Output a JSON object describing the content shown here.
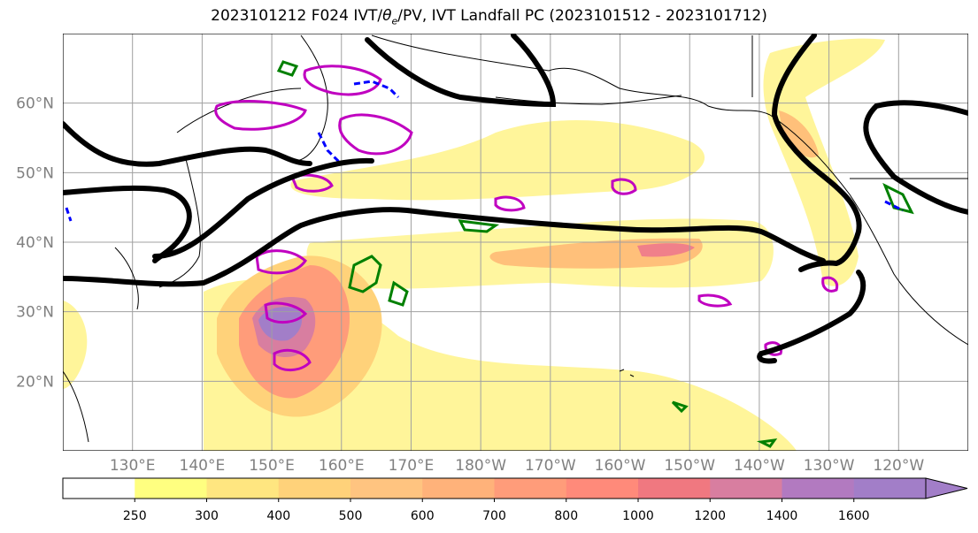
{
  "title": {
    "main": "2023101212 F024 IVT/",
    "symbol": "θ",
    "sub": "e",
    "rest": "/PV, IVT Landfall PC (2023101512 - 2023101712)"
  },
  "map": {
    "lat_labels": [
      "60°N",
      "50°N",
      "40°N",
      "30°N",
      "20°N"
    ],
    "lat_values": [
      60,
      50,
      40,
      30,
      20
    ],
    "lon_labels": [
      "130°E",
      "140°E",
      "150°E",
      "160°E",
      "170°E",
      "180°W",
      "170°W",
      "160°W",
      "150°W",
      "140°W",
      "130°W",
      "120°W"
    ],
    "lon_values": [
      130,
      140,
      150,
      160,
      170,
      180,
      190,
      200,
      210,
      220,
      230,
      240
    ],
    "lon_range": [
      120,
      250
    ],
    "lat_range": [
      10,
      70
    ],
    "grid": true
  },
  "colorbar": {
    "ticks": [
      "250",
      "300",
      "400",
      "500",
      "600",
      "700",
      "800",
      "1000",
      "1200",
      "1400",
      "1600"
    ],
    "colors": [
      "#ffffff",
      "#ffff80",
      "#ffe680",
      "#ffd27a",
      "#ffc480",
      "#ffb27a",
      "#ff9c7a",
      "#ff8a7a",
      "#f07880",
      "#d87ea0",
      "#b27ac0",
      "#a27ec8"
    ],
    "extend": "max"
  },
  "legend_colors": {
    "ivt_contour": "#000000",
    "theta_e": "#008000",
    "pv_positive": "#c000c0",
    "pv_negative": "#0000ff"
  }
}
